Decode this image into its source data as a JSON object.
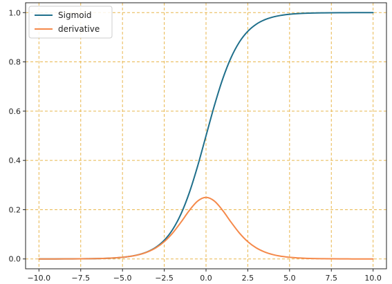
{
  "chart_data": {
    "type": "line",
    "title": "",
    "xlabel": "",
    "ylabel": "",
    "xlim": [
      -10.8,
      10.8
    ],
    "ylim": [
      -0.04,
      1.04
    ],
    "x_ticks": [
      -10.0,
      -7.5,
      -5.0,
      -2.5,
      0.0,
      2.5,
      5.0,
      7.5,
      10.0
    ],
    "x_tick_labels": [
      "−10.0",
      "−7.5",
      "−5.0",
      "−2.5",
      "0.0",
      "2.5",
      "5.0",
      "7.5",
      "10.0"
    ],
    "y_ticks": [
      0.0,
      0.2,
      0.4,
      0.6,
      0.8,
      1.0
    ],
    "y_tick_labels": [
      "0.0",
      "0.2",
      "0.4",
      "0.6",
      "0.8",
      "1.0"
    ],
    "grid": true,
    "grid_style": "dashed",
    "grid_color": "#e8b64c",
    "legend_position": "top-left",
    "x": [
      -10,
      -9,
      -8,
      -7,
      -6,
      -5,
      -4.5,
      -4,
      -3.5,
      -3,
      -2.5,
      -2,
      -1.5,
      -1,
      -0.5,
      0,
      0.5,
      1,
      1.5,
      2,
      2.5,
      3,
      3.5,
      4,
      4.5,
      5,
      6,
      7,
      8,
      9,
      10
    ],
    "series": [
      {
        "name": "Sigmoid",
        "color": "#1f6f8b",
        "values": [
          0.0,
          0.0001,
          0.0003,
          0.0009,
          0.0025,
          0.0067,
          0.011,
          0.018,
          0.0293,
          0.0474,
          0.0759,
          0.1192,
          0.1824,
          0.2689,
          0.3775,
          0.5,
          0.6225,
          0.7311,
          0.8176,
          0.8808,
          0.9241,
          0.9526,
          0.9707,
          0.982,
          0.989,
          0.9933,
          0.9975,
          0.9991,
          0.9997,
          0.9999,
          1.0
        ]
      },
      {
        "name": "derivative",
        "color": "#f5894a",
        "values": [
          0.0,
          0.0001,
          0.0003,
          0.0009,
          0.0025,
          0.0066,
          0.0109,
          0.0177,
          0.0285,
          0.0452,
          0.0701,
          0.105,
          0.1491,
          0.1966,
          0.235,
          0.25,
          0.235,
          0.1966,
          0.1491,
          0.105,
          0.0701,
          0.0452,
          0.0285,
          0.0177,
          0.0109,
          0.0066,
          0.0025,
          0.0009,
          0.0003,
          0.0001,
          0.0
        ]
      }
    ]
  }
}
